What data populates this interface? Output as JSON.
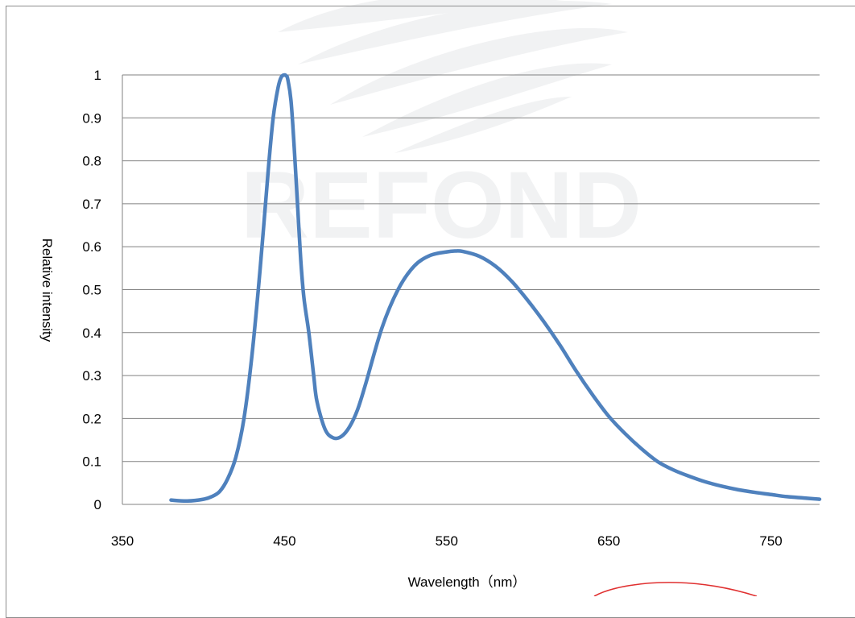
{
  "chart_data": {
    "type": "line",
    "title": "",
    "xlabel": "Wavelength（nm）",
    "ylabel": "Relative intensity",
    "xlim": [
      350,
      780
    ],
    "ylim": [
      0,
      1
    ],
    "x_ticks": [
      "350",
      "450",
      "550",
      "650",
      "750"
    ],
    "y_ticks": [
      "0",
      "0.1",
      "0.2",
      "0.3",
      "0.4",
      "0.5",
      "0.6",
      "0.7",
      "0.8",
      "0.9",
      "1"
    ],
    "grid": "horizontal",
    "legend": "none",
    "watermark": "REFOND",
    "series": [
      {
        "color": "#4f81bd",
        "x": [
          380,
          390,
          400,
          405,
          410,
          415,
          420,
          425,
          430,
          435,
          440,
          443,
          446,
          448,
          450,
          451,
          452,
          454,
          456,
          458,
          460,
          462,
          465,
          468,
          470,
          475,
          480,
          485,
          490,
          495,
          500,
          510,
          520,
          530,
          540,
          550,
          555,
          560,
          570,
          580,
          590,
          600,
          610,
          620,
          630,
          640,
          650,
          660,
          670,
          680,
          690,
          700,
          710,
          720,
          730,
          740,
          750,
          760,
          770,
          780
        ],
        "y": [
          0.01,
          0.008,
          0.012,
          0.018,
          0.03,
          0.06,
          0.11,
          0.2,
          0.35,
          0.55,
          0.78,
          0.9,
          0.97,
          0.995,
          1.0,
          0.998,
          0.99,
          0.94,
          0.83,
          0.7,
          0.57,
          0.48,
          0.4,
          0.3,
          0.24,
          0.175,
          0.155,
          0.158,
          0.18,
          0.22,
          0.28,
          0.41,
          0.5,
          0.555,
          0.58,
          0.588,
          0.59,
          0.589,
          0.578,
          0.555,
          0.52,
          0.475,
          0.425,
          0.37,
          0.31,
          0.255,
          0.205,
          0.165,
          0.13,
          0.1,
          0.08,
          0.065,
          0.052,
          0.042,
          0.034,
          0.028,
          0.023,
          0.018,
          0.015,
          0.012
        ]
      }
    ]
  }
}
